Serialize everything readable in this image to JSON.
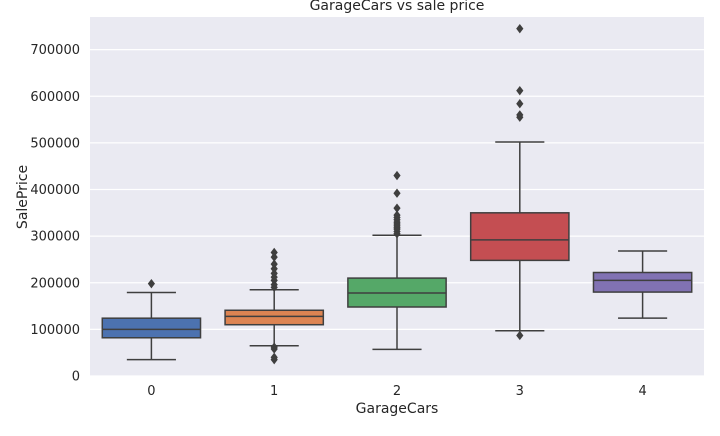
{
  "chart_data": {
    "type": "boxplot",
    "title": "GarageCars vs sale price",
    "xlabel": "GarageCars",
    "ylabel": "SalePrice",
    "categories": [
      "0",
      "1",
      "2",
      "3",
      "4"
    ],
    "ylim": [
      0,
      770000
    ],
    "yticks": [
      0,
      100000,
      200000,
      300000,
      400000,
      500000,
      600000,
      700000
    ],
    "ytick_labels": [
      "0",
      "100000",
      "200000",
      "300000",
      "400000",
      "500000",
      "600000",
      "700000"
    ],
    "grid": true,
    "boxes": [
      {
        "category": "0",
        "color": "#4c72b0",
        "whisker_low": 35000,
        "q1": 82000,
        "median": 100000,
        "q3": 124000,
        "whisker_high": 179000,
        "outliers": [
          198000
        ]
      },
      {
        "category": "1",
        "color": "#dd8452",
        "whisker_low": 65000,
        "q1": 110000,
        "median": 128000,
        "q3": 141000,
        "whisker_high": 185000,
        "outliers": [
          35000,
          40000,
          58000,
          62000,
          190000,
          196000,
          205000,
          212000,
          220000,
          230000,
          240000,
          255000,
          265000
        ]
      },
      {
        "category": "2",
        "color": "#55a868",
        "whisker_low": 57000,
        "q1": 148000,
        "median": 178000,
        "q3": 210000,
        "whisker_high": 302000,
        "outliers": [
          305000,
          310000,
          315000,
          318000,
          322000,
          326000,
          330000,
          335000,
          340000,
          345000,
          360000,
          392000,
          430000
        ]
      },
      {
        "category": "3",
        "color": "#c44e52",
        "whisker_low": 97000,
        "q1": 248000,
        "median": 292000,
        "q3": 350000,
        "whisker_high": 502000,
        "outliers": [
          87000,
          555000,
          560000,
          584000,
          612000,
          745000
        ]
      },
      {
        "category": "4",
        "color": "#8172b3",
        "whisker_low": 124000,
        "q1": 180000,
        "median": 205000,
        "q3": 222000,
        "whisker_high": 268000,
        "outliers": []
      }
    ]
  }
}
